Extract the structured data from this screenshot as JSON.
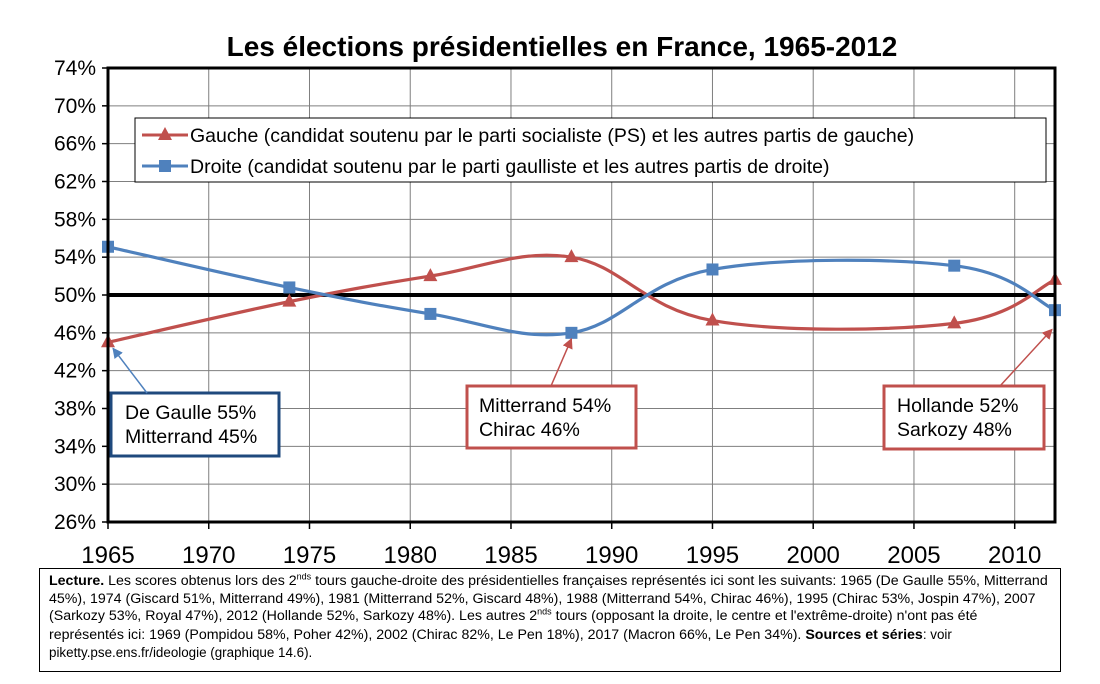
{
  "chart_data": {
    "type": "line",
    "title": "Les élections présidentielles en France, 1965-2012",
    "xlim": [
      1965,
      2012
    ],
    "ylim": [
      26,
      74
    ],
    "x_ticks": [
      "1965",
      "1970",
      "1975",
      "1980",
      "1985",
      "1990",
      "1995",
      "2000",
      "2005",
      "2010"
    ],
    "y_ticks": [
      "26%",
      "30%",
      "34%",
      "38%",
      "42%",
      "46%",
      "50%",
      "54%",
      "58%",
      "62%",
      "66%",
      "70%",
      "74%"
    ],
    "reference_line": 50,
    "legend_position": "top",
    "series": [
      {
        "name": "Gauche (candidat soutenu par le parti socialiste (PS) et les autres partis de gauche)",
        "color": "#c0504d",
        "marker": "triangle",
        "x": [
          1965,
          1974,
          1981,
          1988,
          1995,
          2007,
          2012
        ],
        "values": [
          45,
          49.3,
          52,
          54,
          47.3,
          47,
          51.6
        ]
      },
      {
        "name": "Droite (candidat soutenu par le parti gaulliste et les autres partis de droite)",
        "color": "#4f81bd",
        "marker": "square",
        "x": [
          1965,
          1974,
          1981,
          1988,
          1995,
          2007,
          2012
        ],
        "values": [
          55.1,
          50.8,
          48,
          46,
          52.7,
          53.1,
          48.4
        ]
      }
    ],
    "annotations": [
      {
        "lines": [
          "De Gaulle 55%",
          "Mitterrand 45%"
        ],
        "border": "#1f497d",
        "target_x": 1965,
        "target_y": 45
      },
      {
        "lines": [
          "Mitterrand 54%",
          "Chirac 46%"
        ],
        "border": "#c0504d",
        "target_x": 1988,
        "target_y": 46
      },
      {
        "lines": [
          "Hollande 52%",
          "Sarkozy 48%"
        ],
        "border": "#c0504d",
        "target_x": 2012,
        "target_y": 47
      }
    ]
  },
  "note": {
    "lead": "Lecture.",
    "p1": " Les scores obtenus lors des 2",
    "sup1": "nds",
    "p2": " tours gauche-droite des présidentielles françaises représentés ici sont les suivants: 1965 (De Gaulle 55%, Mitterrand 45%), 1974 (Giscard 51%, Mitterrand 49%), 1981 (Mitterrand 52%, Giscard 48%), 1988 (Mitterrand 54%, Chirac 46%), 1995 (Chirac 53%, Jospin 47%), 2007 (Sarkozy 53%, Royal 47%), 2012 (Hollande 52%, Sarkozy 48%). Les autres 2",
    "sup2": "nds",
    "p3": " tours (opposant la droite, le centre et l'extrême-droite) n'ont pas été représentés ici: 1969 (Pompidou 58%, Poher 42%), 2002 (Chirac 82%, Le Pen 18%), 2017 (Macron 66%, Le Pen 34%). ",
    "sources_label": "Sources et séries",
    "sources_text": ": voir piketty.pse.ens.fr/ideologie (graphique 14.6)."
  }
}
